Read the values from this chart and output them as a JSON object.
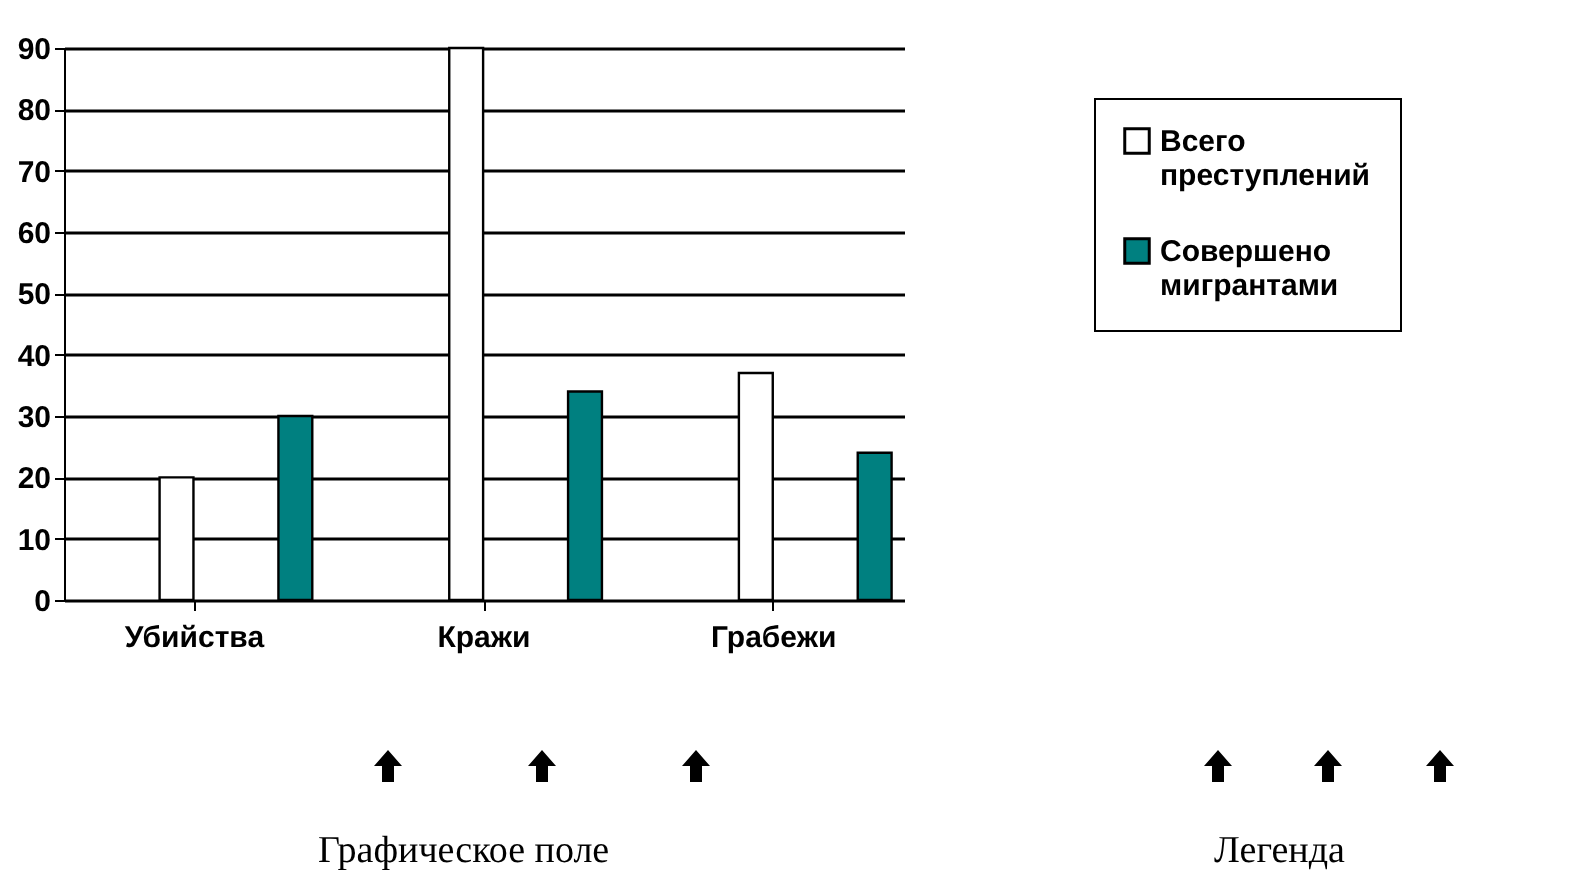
{
  "chart_data": {
    "type": "bar",
    "categories": [
      "Убийства",
      "Кражи",
      "Грабежи"
    ],
    "series": [
      {
        "name": "Всего преступлений",
        "color": "#ffffff",
        "values": [
          20,
          90,
          37
        ]
      },
      {
        "name": "Совершено мигрантами",
        "color": "#008080",
        "values": [
          30,
          34,
          24
        ]
      }
    ],
    "ylim": [
      0,
      90
    ],
    "yticks": [
      0,
      10,
      20,
      30,
      40,
      50,
      60,
      70,
      80,
      90
    ],
    "grid": "y",
    "legend": "right",
    "annotations": [
      "Графическое поле",
      "Легенда"
    ]
  }
}
